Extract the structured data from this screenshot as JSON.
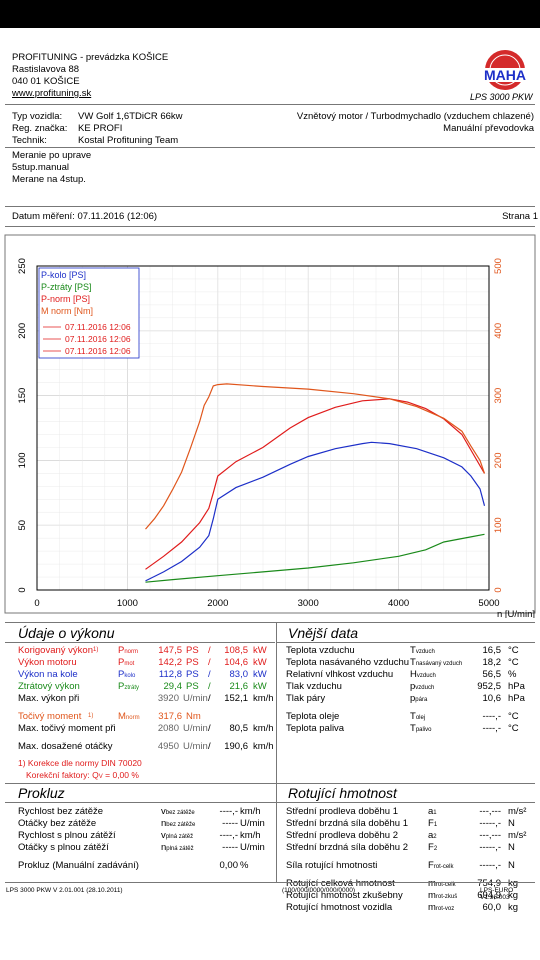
{
  "company": {
    "name": "PROFITUNING - prevádzka KOŠICE",
    "street": "Rastislavova 88",
    "city": "040 01 KOŠICE",
    "web": "www.profituning.sk"
  },
  "logo": {
    "brand": "MAHA",
    "caption": "LPS 3000 PKW"
  },
  "vehicle": {
    "rows": [
      {
        "k": "Typ vozidla:",
        "v": "VW Golf 1,6TDiCR 66kw"
      },
      {
        "k": "Reg. značka:",
        "v": "KE PROFI"
      },
      {
        "k": "Technik:",
        "v": "Kostal Profituning Team"
      }
    ],
    "engine": "Vznětový motor / Turbodmychadlo (vzduchem chlazené)",
    "gearbox": "Manuální převodovka"
  },
  "notes": [
    "Meranie po uprave",
    "5stup.manual",
    "Merane na 4stup."
  ],
  "date_label": "Datum měření: 07.11.2016 (12:06)",
  "page_label": "Strana 1",
  "chart_data": {
    "type": "line",
    "xlabel": "n [U/min]",
    "xlim": [
      0,
      5000
    ],
    "xticks": [
      0,
      1000,
      2000,
      3000,
      4000,
      5000
    ],
    "ylim_left": [
      0,
      250
    ],
    "yticks_left": [
      0,
      50,
      100,
      150,
      200,
      250
    ],
    "ylim_right": [
      0,
      500
    ],
    "yticks_right": [
      0,
      100,
      200,
      300,
      400,
      500
    ],
    "grid": true,
    "legend": [
      "P-kolo [PS]",
      "P-ztráty [PS]",
      "P-norm [PS]",
      "M norm [Nm]",
      "07.11.2016 12:06",
      "07.11.2016 12:06",
      "07.11.2016 12:06"
    ],
    "colors": {
      "P-kolo": "#1d2fc8",
      "P-ztráty": "#1a8a1a",
      "P-norm": "#e01c1c",
      "M norm": "#e0561c"
    },
    "series": [
      {
        "name": "P-kolo [PS]",
        "axis": "left",
        "x": [
          1200,
          1400,
          1600,
          1800,
          1900,
          1950,
          2000,
          2200,
          2500,
          2800,
          3000,
          3300,
          3600,
          3700,
          3900,
          4200,
          4500,
          4700,
          4800,
          4900,
          4950
        ],
        "y": [
          7,
          14,
          22,
          33,
          42,
          55,
          70,
          79,
          87,
          97,
          103,
          109,
          113,
          114,
          113,
          109,
          102,
          95,
          88,
          78,
          65
        ]
      },
      {
        "name": "P-ztráty [PS]",
        "axis": "left",
        "x": [
          1200,
          1500,
          2000,
          2500,
          3000,
          3500,
          4000,
          4300,
          4500,
          4800,
          4950
        ],
        "y": [
          6,
          8,
          11,
          14,
          17,
          21,
          26,
          31,
          37,
          41,
          43
        ]
      },
      {
        "name": "P-norm [PS]",
        "axis": "left",
        "x": [
          1200,
          1400,
          1600,
          1800,
          1900,
          1950,
          2000,
          2200,
          2500,
          2800,
          3000,
          3300,
          3600,
          3800,
          3900,
          4100,
          4300,
          4500,
          4700,
          4800,
          4950
        ],
        "y": [
          16,
          26,
          37,
          52,
          63,
          75,
          88,
          99,
          110,
          125,
          133,
          141,
          146,
          147,
          147.5,
          145,
          140,
          132,
          120,
          108,
          90
        ]
      },
      {
        "name": "M norm [Nm]",
        "axis": "right",
        "x": [
          1200,
          1300,
          1400,
          1500,
          1600,
          1700,
          1800,
          1850,
          1900,
          1950,
          2000,
          2100,
          2300,
          2500,
          3000,
          3500,
          3900,
          4200,
          4500,
          4700,
          4800,
          4900,
          4950
        ],
        "y": [
          94,
          110,
          130,
          155,
          182,
          220,
          260,
          285,
          298,
          315,
          317,
          318,
          316,
          314,
          310,
          303,
          295,
          283,
          265,
          245,
          222,
          200,
          180
        ]
      }
    ]
  },
  "udaje": {
    "title": "Údaje o výkonu",
    "korig": {
      "label": "Korigovaný výkon",
      "sup": "1)",
      "sym": "P",
      "sub": "norm",
      "ps": "147,5",
      "ps_u": "PS",
      "kw": "108,5",
      "kw_u": "kW"
    },
    "motor": {
      "label": "Výkon motoru",
      "sym": "P",
      "sub": "mot",
      "ps": "142,2",
      "ps_u": "PS",
      "kw": "104,6",
      "kw_u": "kW"
    },
    "kolo": {
      "label": "Výkon na kole",
      "sym": "P",
      "sub": "kolo",
      "ps": "112,8",
      "ps_u": "PS",
      "kw": "83,0",
      "kw_u": "kW"
    },
    "ztraty": {
      "label": "Ztrátový výkon",
      "sym": "P",
      "sub": "ztráty",
      "ps": "29,4",
      "ps_u": "PS",
      "kw": "21,6",
      "kw_u": "kW"
    },
    "max_vykon": {
      "label": "Max. výkon při",
      "rpm": "3920",
      "rpm_u": "U/min",
      "slash": "/",
      "kmh": "152,1",
      "kmh_u": "km/h"
    },
    "tocivy": {
      "label": "Točivý moment",
      "sup": "1)",
      "sym": "M",
      "sub": "norm",
      "val": "317,6",
      "unit": "Nm"
    },
    "max_moment": {
      "label": "Max. točivý moment při",
      "rpm": "2080",
      "rpm_u": "U/min",
      "slash": "/",
      "kmh": "80,5",
      "kmh_u": "km/h"
    },
    "max_otacky": {
      "label": "Max. dosažené otáčky",
      "rpm": "4950",
      "rpm_u": "U/min",
      "slash": "/",
      "kmh": "190,6",
      "kmh_u": "km/h"
    },
    "korekce": "1) Korekce dle normy DIN 70020",
    "faktor": "Korekční faktory: Q",
    "faktor_sub": "V",
    "faktor_val": "=   0,00 %"
  },
  "vnejsi": {
    "title": "Vnější data",
    "rows": [
      {
        "l": "Teplota vzduchu",
        "s": "T",
        "ss": "vzduch",
        "v": "16,5",
        "u": "°C"
      },
      {
        "l": "Teplota nasávaného vzduchu",
        "s": "T",
        "ss": "nasávaný vzduch",
        "v": "18,2",
        "u": "°C"
      },
      {
        "l": "Relativní vlhkost vzduchu",
        "s": "H",
        "ss": "vzduch",
        "v": "56,5",
        "u": "%"
      },
      {
        "l": "Tlak vzduchu",
        "s": "p",
        "ss": "vzduch",
        "v": "952,5",
        "u": "hPa"
      },
      {
        "l": "Tlak páry",
        "s": "p",
        "ss": "pára",
        "v": "10,6",
        "u": "hPa"
      },
      {
        "l": "Teplota oleje",
        "s": "T",
        "ss": "olej",
        "v": "----,-",
        "u": "°C"
      },
      {
        "l": "Teplota paliva",
        "s": "T",
        "ss": "palivo",
        "v": "----,-",
        "u": "°C"
      }
    ]
  },
  "prokluz": {
    "title": "Prokluz",
    "rows": [
      {
        "l": "Rychlost bez zátěže",
        "s": "v",
        "ss": "bez zátěže",
        "v": "----,-",
        "u": "km/h"
      },
      {
        "l": "Otáčky bez zátěže",
        "s": "n",
        "ss": "bez zátěže",
        "v": "-----",
        "u": "U/min"
      },
      {
        "l": "Rychlost s plnou zátěží",
        "s": "v",
        "ss": "plná zátěž",
        "v": "----,-",
        "u": "km/h"
      },
      {
        "l": "Otáčky s plnou zátěží",
        "s": "n",
        "ss": "plná zátěž",
        "v": "-----",
        "u": "U/min"
      }
    ],
    "manual": {
      "l": "Prokluz (Manuální zadávání)",
      "v": "0,00",
      "u": "%"
    }
  },
  "rotujici": {
    "title": "Rotující hmotnost",
    "rows": [
      {
        "l": "Střední prodleva doběhu 1",
        "s": "a",
        "ss": "1",
        "v": "---,---",
        "u": "m/s²"
      },
      {
        "l": "Střední brzdná síla doběhu 1",
        "s": "F",
        "ss": "1",
        "v": "-----,-",
        "u": "N"
      },
      {
        "l": "Střední prodleva doběhu 2",
        "s": "a",
        "ss": "2",
        "v": "---,---",
        "u": "m/s²"
      },
      {
        "l": "Střední brzdná síla doběhu 2",
        "s": "F",
        "ss": "2",
        "v": "-----,-",
        "u": "N"
      },
      {
        "l": "Síla rotující hmotnosti",
        "s": "F",
        "ss": "rot-celk",
        "v": "-----,-",
        "u": "N"
      },
      {
        "l": "Rotující celková hmotnost",
        "s": "m",
        "ss": "rot-celk",
        "v": "754,9",
        "u": "kg"
      },
      {
        "l": "Rotující hmotnost zkušebny",
        "s": "m",
        "ss": "rot-zkuš",
        "v": "694,9",
        "u": "kg"
      },
      {
        "l": "Rotující hmotnost vozidla",
        "s": "m",
        "ss": "rot-voz",
        "v": "60,0",
        "u": "kg"
      }
    ]
  },
  "footer": {
    "left": "LPS 3000 PKW V 2.01.001 (28.10.2011)",
    "mid": "(100/000/0000/000/0000)",
    "right": "LPS-EURO V1.36.003"
  }
}
